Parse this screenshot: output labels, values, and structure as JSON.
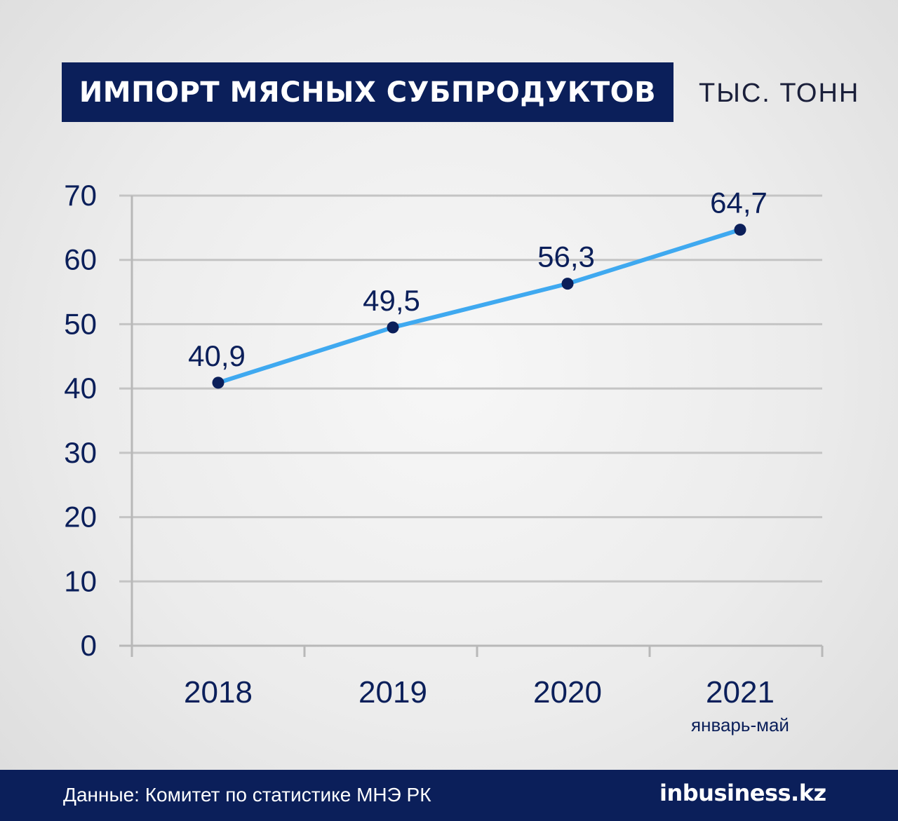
{
  "header": {
    "title": "ИМПОРТ МЯСНЫХ СУБПРОДУКТОВ",
    "unit": "ТЫС. ТОНН"
  },
  "footer": {
    "source": "Данные: Комитет по статистике МНЭ РК",
    "logo": "inbusiness.kz"
  },
  "colors": {
    "navy": "#0b1f5a",
    "line": "#3fa9f0",
    "grid": "#c4c4c4"
  },
  "chart_data": {
    "type": "line",
    "title": "ИМПОРТ МЯСНЫХ СУБПРОДУКТОВ",
    "ylabel": "ТЫС. ТОНН",
    "xlabel": "",
    "categories": [
      "2018",
      "2019",
      "2020",
      "2021"
    ],
    "category_sublabels": [
      "",
      "",
      "",
      "январь-май"
    ],
    "series": [
      {
        "values": [
          40.9,
          49.5,
          56.3,
          64.7
        ]
      }
    ],
    "data_labels": [
      "40,9",
      "49,5",
      "56,3",
      "64,7"
    ],
    "yticks": [
      0,
      10,
      20,
      30,
      40,
      50,
      60,
      70
    ],
    "ylim": [
      0,
      70
    ],
    "grid": true,
    "legend": "none"
  }
}
